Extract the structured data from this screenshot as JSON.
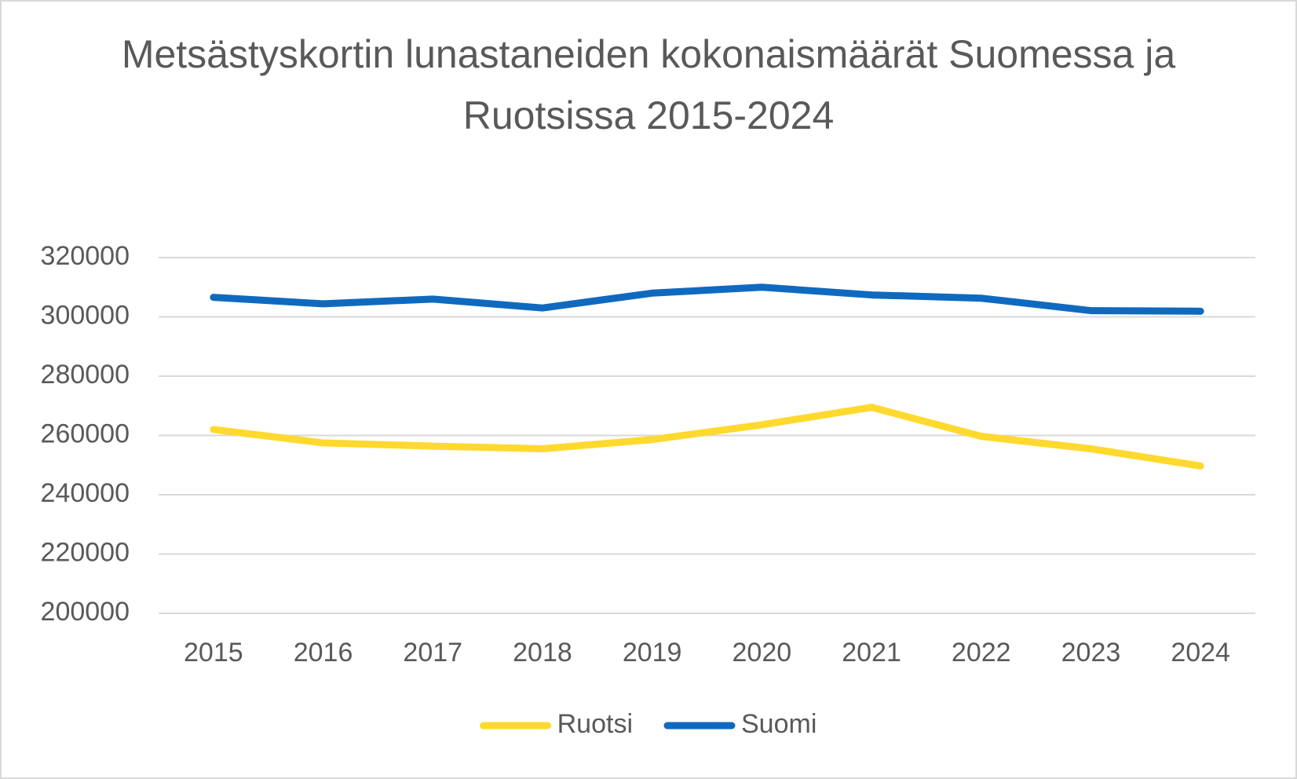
{
  "chart_data": {
    "type": "line",
    "title": "Metsästyskortin lunastaneiden kokonaismäärät Suomessa ja Ruotsissa 2015-2024",
    "categories": [
      "2015",
      "2016",
      "2017",
      "2018",
      "2019",
      "2020",
      "2021",
      "2022",
      "2023",
      "2024"
    ],
    "series": [
      {
        "name": "Ruotsi",
        "color": "#ffd92e",
        "values": [
          262000,
          257500,
          256400,
          255500,
          258600,
          263600,
          269500,
          259700,
          255500,
          249700
        ]
      },
      {
        "name": "Suomi",
        "color": "#0f6abf",
        "values": [
          306600,
          304400,
          306000,
          303000,
          308000,
          310000,
          307400,
          306300,
          302100,
          301900
        ]
      }
    ],
    "ylim": [
      200000,
      320000
    ],
    "yticks": [
      200000,
      220000,
      240000,
      260000,
      280000,
      300000,
      320000
    ],
    "grid": true,
    "legend": "bottom"
  }
}
